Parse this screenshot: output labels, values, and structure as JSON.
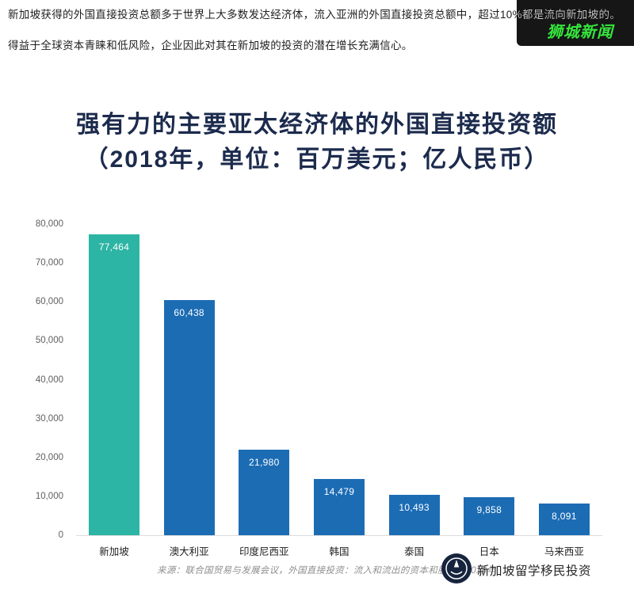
{
  "header": {
    "paragraph1": "新加坡获得的外国直接投资总额多于世界上大多数发达经济体，流入亚洲的外国直接投资总额中，超过10%都是流向新加坡的。",
    "paragraph2": "得益于全球资本青睐和低风险，企业因此对其在新加坡的投资的潜在增长充满信心。",
    "brand_watermark": "狮城新闻",
    "brand_color": "#35e63c"
  },
  "chart_data": {
    "type": "bar",
    "title": "强有力的主要亚太经济体的外国直接投资额",
    "subtitle": "（2018年，单位：百万美元；亿人民币）",
    "categories": [
      "新加坡",
      "澳大利亚",
      "印度尼西亚",
      "韩国",
      "泰国",
      "日本",
      "马来西亚"
    ],
    "values": [
      77464,
      60438,
      21980,
      14479,
      10493,
      9858,
      8091
    ],
    "value_labels": [
      "77,464",
      "60,438",
      "21,980",
      "14,479",
      "10,493",
      "9,858",
      "8,091"
    ],
    "bar_colors": [
      "#2cb4a4",
      "#1c6cb4",
      "#1c6cb4",
      "#1c6cb4",
      "#1c6cb4",
      "#1c6cb4",
      "#1c6cb4"
    ],
    "ylim": [
      0,
      80000
    ],
    "ytick_labels": [
      "80,000",
      "70,000",
      "60,000",
      "50,000",
      "40,000",
      "30,000",
      "20,000",
      "10,000",
      "0"
    ],
    "xlabel": "",
    "ylabel": "",
    "grid": false,
    "legend": "none"
  },
  "footer": {
    "source": "来源：联合国贸易与发展会议，外国直接投资：流入和流出的资本和股票，2018年",
    "badge_icon": "circular-seal-icon",
    "watermark_text": "新加坡留学移民投资"
  }
}
